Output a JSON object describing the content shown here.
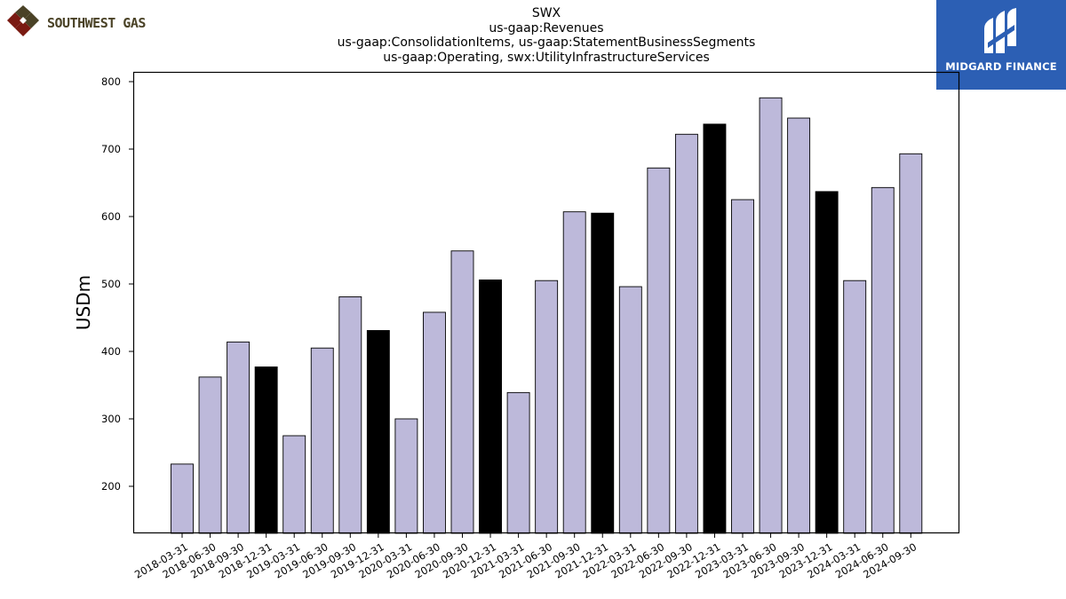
{
  "chart_data": {
    "type": "bar",
    "title": [
      "SWX",
      "us-gaap:Revenues",
      "us-gaap:ConsolidationItems, us-gaap:StatementBusinessSegments",
      "us-gaap:Operating, swx:UtilityInfrastructureServices"
    ],
    "xlabel": "",
    "ylabel": "USDm",
    "ylim": [
      130,
      815
    ],
    "yticks": [
      200,
      300,
      400,
      500,
      600,
      700,
      800
    ],
    "categories": [
      "2018-03-31",
      "2018-06-30",
      "2018-09-30",
      "2018-12-31",
      "2019-03-31",
      "2019-06-30",
      "2019-09-30",
      "2019-12-31",
      "2020-03-31",
      "2020-06-30",
      "2020-09-30",
      "2020-12-31",
      "2021-03-31",
      "2021-06-30",
      "2021-09-30",
      "2021-12-31",
      "2022-03-31",
      "2022-06-30",
      "2022-09-30",
      "2022-12-31",
      "2023-03-31",
      "2023-06-30",
      "2023-09-30",
      "2023-12-31",
      "2024-03-31",
      "2024-06-30",
      "2024-09-30"
    ],
    "values": [
      233,
      362,
      414,
      377,
      275,
      405,
      481,
      431,
      300,
      458,
      549,
      506,
      339,
      505,
      607,
      605,
      496,
      672,
      722,
      737,
      625,
      776,
      746,
      637,
      505,
      643,
      693
    ],
    "highlight_color": "#000000",
    "bar_color": "#bdb9da",
    "highlight_categories": [
      "2018-12-31",
      "2019-12-31",
      "2020-12-31",
      "2021-12-31",
      "2022-12-31",
      "2023-12-31"
    ],
    "grid": false,
    "legend": "none"
  },
  "logos": {
    "left": {
      "text": "SOUTHWEST GAS",
      "color": "#4a4226",
      "accent": "#7a1a12"
    },
    "right": {
      "text": "MIDGARD FINANCE",
      "background": "#2c5fb4",
      "color": "#ffffff"
    }
  }
}
